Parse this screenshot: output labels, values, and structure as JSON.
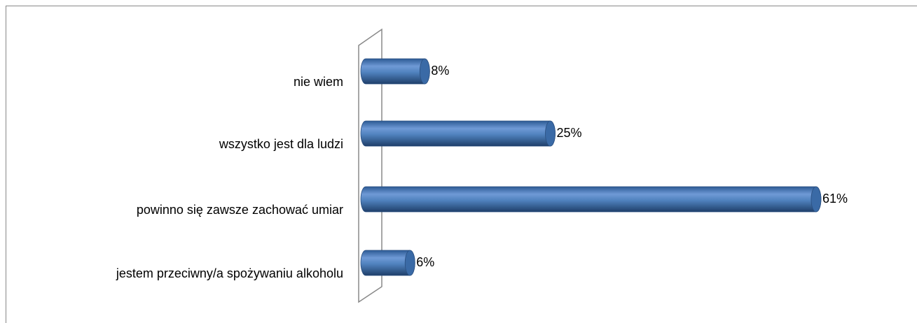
{
  "chart_data": {
    "type": "bar",
    "orientation": "horizontal",
    "categories": [
      "nie wiem",
      "wszystko jest dla ludzi",
      "powinno się zawsze zachować umiar",
      "jestem przeciwny/a spożywaniu alkoholu"
    ],
    "values": [
      8,
      25,
      61,
      6
    ],
    "value_labels": [
      "8%",
      "25%",
      "61%",
      "6%"
    ],
    "color": "#4f81bd"
  }
}
